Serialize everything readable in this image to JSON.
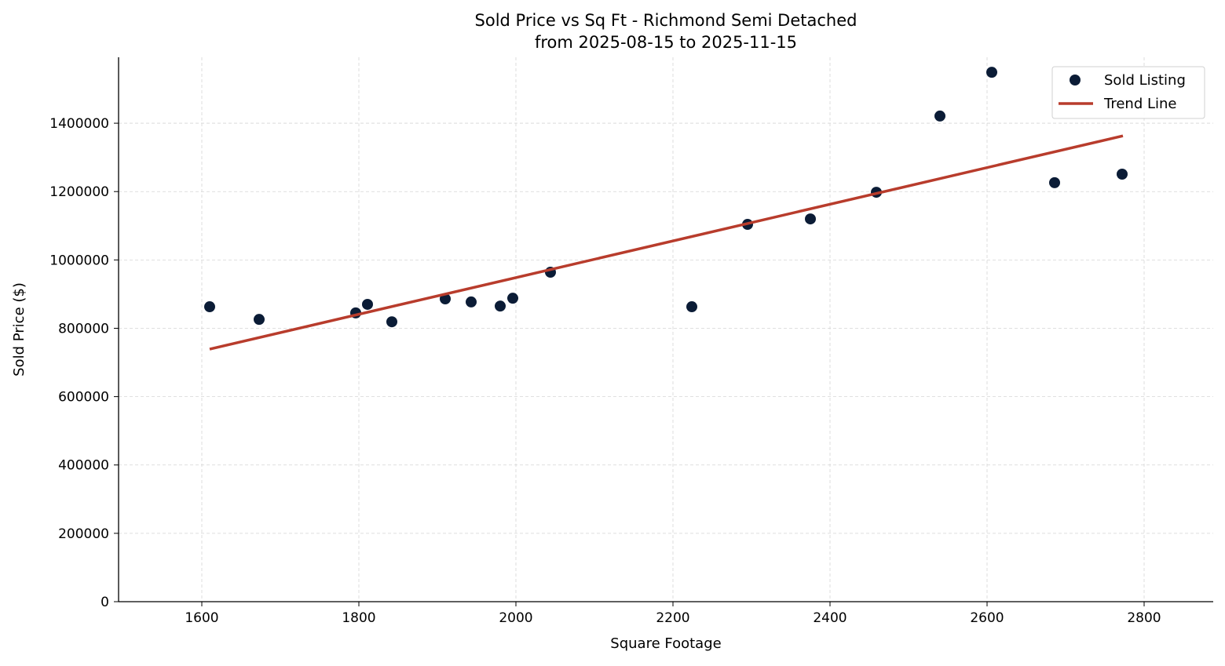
{
  "chart_data": {
    "type": "scatter",
    "title": "Sold Price vs Sq Ft - Richmond Semi Detached",
    "subtitle": "from 2025-08-15 to 2025-11-15",
    "xlabel": "Square Footage",
    "ylabel": "Sold Price ($)",
    "xlim": [
      1494,
      2888
    ],
    "ylim": [
      0,
      1593000
    ],
    "xticks": [
      1600,
      1800,
      2000,
      2200,
      2400,
      2600,
      2800
    ],
    "yticks": [
      0,
      200000,
      400000,
      600000,
      800000,
      1000000,
      1200000,
      1400000
    ],
    "grid": true,
    "legend_position": "top-right",
    "series": [
      {
        "name": "Sold Listing",
        "kind": "scatter",
        "color": "#0b1c36",
        "points": [
          [
            1610,
            863000
          ],
          [
            1673,
            826000
          ],
          [
            1796,
            845000
          ],
          [
            1811,
            870000
          ],
          [
            1842,
            819000
          ],
          [
            1910,
            886000
          ],
          [
            1943,
            877000
          ],
          [
            1980,
            865000
          ],
          [
            1996,
            888000
          ],
          [
            2044,
            964000
          ],
          [
            2224,
            863000
          ],
          [
            2295,
            1104000
          ],
          [
            2375,
            1120000
          ],
          [
            2459,
            1198000
          ],
          [
            2540,
            1421000
          ],
          [
            2606,
            1549000
          ],
          [
            2686,
            1226000
          ],
          [
            2772,
            1251000
          ]
        ]
      },
      {
        "name": "Trend Line",
        "kind": "line",
        "color": "#b83c2c",
        "points": [
          [
            1610,
            739000
          ],
          [
            2773,
            1363000
          ]
        ]
      }
    ]
  }
}
